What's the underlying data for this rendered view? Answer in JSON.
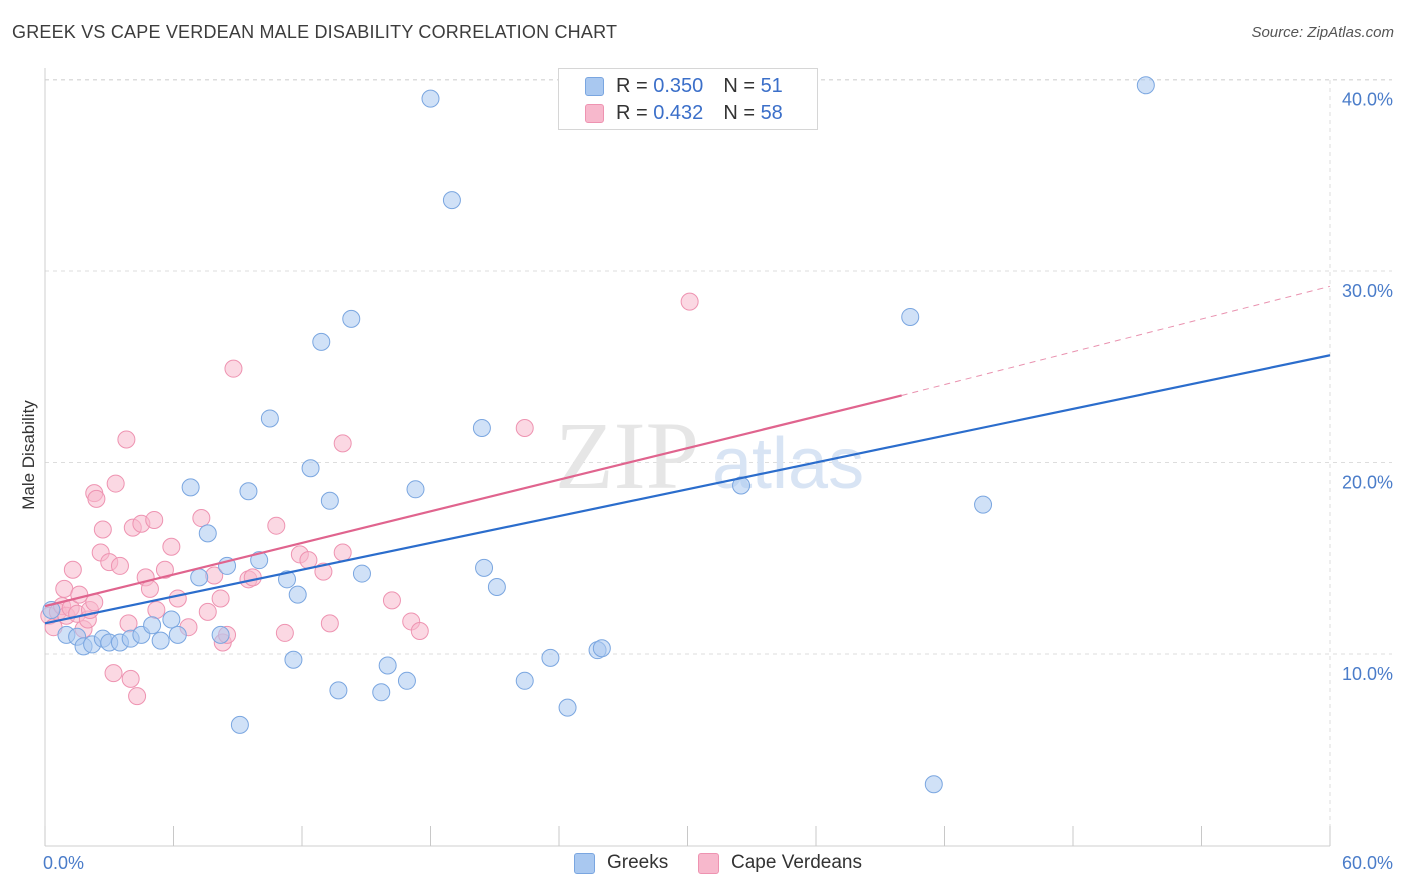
{
  "title": "GREEK VS CAPE VERDEAN MALE DISABILITY CORRELATION CHART",
  "source": "Source: ZipAtlas.com",
  "watermark": {
    "zip": "ZIP",
    "atlas": "atlas"
  },
  "colors": {
    "greeks_fill": "#a9c8f0",
    "greeks_stroke": "#7aa6e0",
    "greeks_line": "#2b6dcc",
    "cape_fill": "#f7b8cc",
    "cape_stroke": "#ee93b1",
    "cape_line": "#e0648e",
    "tick_text": "#4a7cc9",
    "grid": "#dddddd"
  },
  "legend": {
    "rows": [
      {
        "r_label": "R = ",
        "r_value": "0.350",
        "n_label": "N = ",
        "n_value": "51"
      },
      {
        "r_label": "R = ",
        "r_value": "0.432",
        "n_label": "N = ",
        "n_value": "58"
      }
    ]
  },
  "chart_data": {
    "type": "scatter",
    "title": "GREEK VS CAPE VERDEAN MALE DISABILITY CORRELATION CHART",
    "xlabel": "",
    "ylabel": "Male Disability",
    "xlim": [
      0,
      60
    ],
    "ylim": [
      0,
      42
    ],
    "x_tick_labels": [
      "0.0%",
      "60.0%"
    ],
    "y_ticks": [
      10,
      20,
      30,
      40
    ],
    "y_tick_labels": [
      "10.0%",
      "20.0%",
      "30.0%",
      "40.0%"
    ],
    "grid": true,
    "legend_placement": "bottom",
    "series": [
      {
        "name": "Greeks",
        "r": 0.35,
        "n": 51,
        "trend": {
          "x0": 0,
          "y0": 11.6,
          "x1": 60,
          "y1": 25.6
        },
        "points": [
          [
            0.3,
            12.3
          ],
          [
            1.0,
            11.0
          ],
          [
            1.5,
            10.9
          ],
          [
            1.8,
            10.4
          ],
          [
            2.2,
            10.5
          ],
          [
            2.7,
            10.8
          ],
          [
            3.0,
            10.6
          ],
          [
            3.5,
            10.6
          ],
          [
            4.0,
            10.8
          ],
          [
            4.5,
            11.0
          ],
          [
            5.0,
            11.5
          ],
          [
            5.4,
            10.7
          ],
          [
            5.9,
            11.8
          ],
          [
            6.2,
            11.0
          ],
          [
            6.8,
            18.7
          ],
          [
            7.2,
            14.0
          ],
          [
            7.6,
            16.3
          ],
          [
            8.2,
            11.0
          ],
          [
            8.5,
            14.6
          ],
          [
            9.1,
            6.3
          ],
          [
            9.5,
            18.5
          ],
          [
            10.0,
            14.9
          ],
          [
            10.5,
            22.3
          ],
          [
            11.3,
            13.9
          ],
          [
            11.6,
            9.7
          ],
          [
            11.8,
            13.1
          ],
          [
            12.4,
            19.7
          ],
          [
            12.9,
            26.3
          ],
          [
            13.3,
            18.0
          ],
          [
            13.7,
            8.1
          ],
          [
            14.3,
            27.5
          ],
          [
            14.8,
            14.2
          ],
          [
            15.7,
            8.0
          ],
          [
            16.0,
            9.4
          ],
          [
            16.9,
            8.6
          ],
          [
            17.3,
            18.6
          ],
          [
            18.0,
            39.0
          ],
          [
            19.0,
            33.7
          ],
          [
            20.4,
            21.8
          ],
          [
            20.5,
            14.5
          ],
          [
            21.1,
            13.5
          ],
          [
            22.4,
            8.6
          ],
          [
            23.6,
            9.8
          ],
          [
            24.4,
            7.2
          ],
          [
            25.8,
            10.2
          ],
          [
            26.0,
            10.3
          ],
          [
            32.5,
            18.8
          ],
          [
            40.4,
            27.6
          ],
          [
            41.5,
            3.2
          ],
          [
            43.8,
            17.8
          ],
          [
            51.4,
            39.7
          ]
        ]
      },
      {
        "name": "Cape Verdeans",
        "r": 0.432,
        "n": 58,
        "trend": {
          "x0": 0,
          "y0": 12.5,
          "x1": 40,
          "y1": 23.5,
          "dashed_to_x": 60,
          "dashed_to_y": 29.2
        },
        "points": [
          [
            0.2,
            12.0
          ],
          [
            0.4,
            11.4
          ],
          [
            0.6,
            12.2
          ],
          [
            0.8,
            12.5
          ],
          [
            1.0,
            12.0
          ],
          [
            0.9,
            13.4
          ],
          [
            1.2,
            12.4
          ],
          [
            1.3,
            14.4
          ],
          [
            1.5,
            12.1
          ],
          [
            1.6,
            13.1
          ],
          [
            1.8,
            11.3
          ],
          [
            2.0,
            11.8
          ],
          [
            2.1,
            12.3
          ],
          [
            2.3,
            12.7
          ],
          [
            2.3,
            18.4
          ],
          [
            2.4,
            18.1
          ],
          [
            2.6,
            15.3
          ],
          [
            2.7,
            16.5
          ],
          [
            3.0,
            14.8
          ],
          [
            3.2,
            9.0
          ],
          [
            3.3,
            18.9
          ],
          [
            3.5,
            14.6
          ],
          [
            3.8,
            21.2
          ],
          [
            3.9,
            11.6
          ],
          [
            4.0,
            8.7
          ],
          [
            4.3,
            7.8
          ],
          [
            4.1,
            16.6
          ],
          [
            4.5,
            16.8
          ],
          [
            4.7,
            14.0
          ],
          [
            4.9,
            13.4
          ],
          [
            5.1,
            17.0
          ],
          [
            5.2,
            12.3
          ],
          [
            5.6,
            14.4
          ],
          [
            5.9,
            15.6
          ],
          [
            6.2,
            12.9
          ],
          [
            6.7,
            11.4
          ],
          [
            7.3,
            17.1
          ],
          [
            7.6,
            12.2
          ],
          [
            7.9,
            14.1
          ],
          [
            8.2,
            12.9
          ],
          [
            8.3,
            10.6
          ],
          [
            8.5,
            11.0
          ],
          [
            8.8,
            24.9
          ],
          [
            9.5,
            13.9
          ],
          [
            9.7,
            14.0
          ],
          [
            10.8,
            16.7
          ],
          [
            11.2,
            11.1
          ],
          [
            11.9,
            15.2
          ],
          [
            12.3,
            14.9
          ],
          [
            13.0,
            14.3
          ],
          [
            13.3,
            11.6
          ],
          [
            13.9,
            15.3
          ],
          [
            13.9,
            21.0
          ],
          [
            16.2,
            12.8
          ],
          [
            17.1,
            11.7
          ],
          [
            17.5,
            11.2
          ],
          [
            22.4,
            21.8
          ],
          [
            30.1,
            28.4
          ]
        ]
      }
    ]
  }
}
